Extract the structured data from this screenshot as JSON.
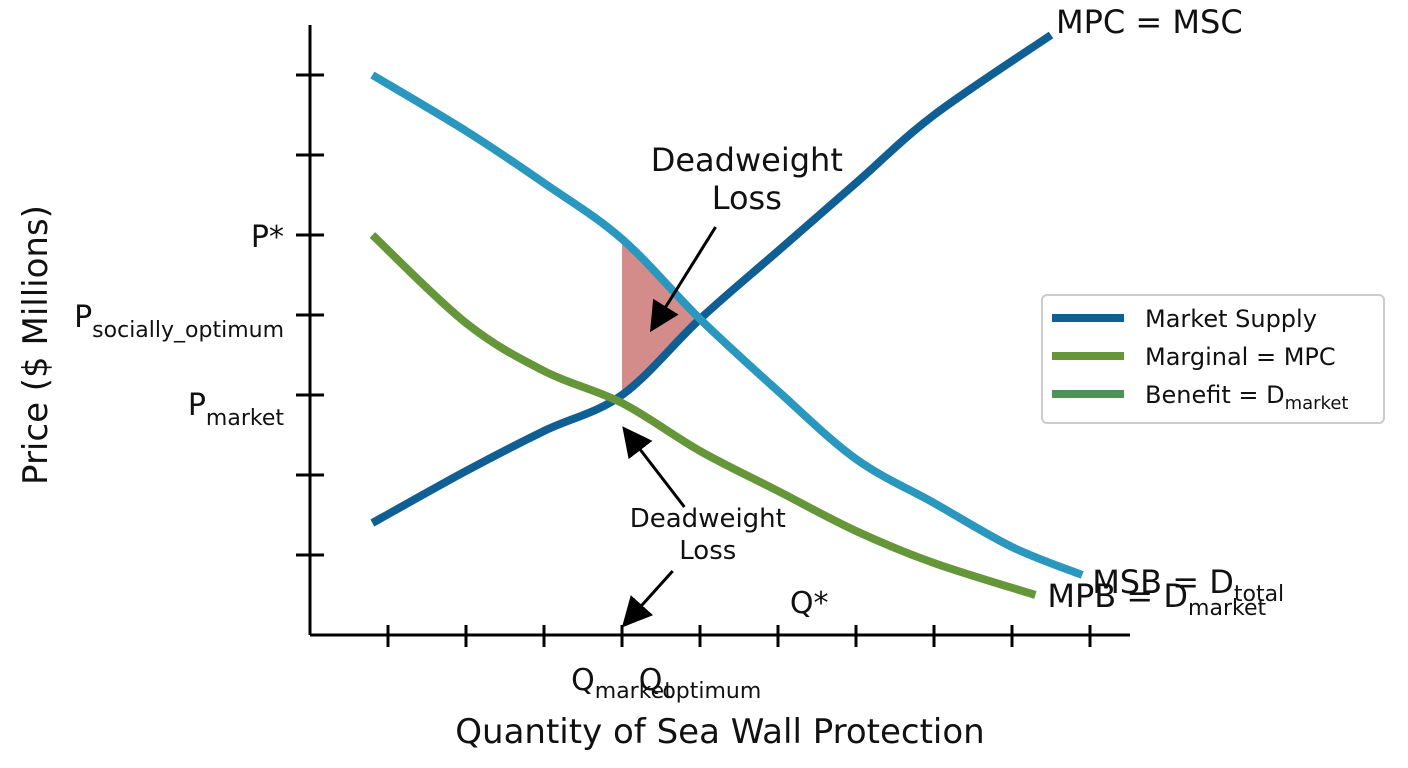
{
  "chart_data": {
    "type": "line",
    "title": "",
    "xlabel": "Quantity of Sea Wall Protection",
    "ylabel": "Price ($ Millions)",
    "xlim": [
      0,
      10.5
    ],
    "ylim": [
      0,
      7.5
    ],
    "x_ticks": [
      1,
      2,
      3,
      4,
      5,
      6,
      7,
      8,
      9,
      10
    ],
    "y_ticks": [
      1,
      2,
      3,
      4,
      5,
      6,
      7
    ],
    "grid": false,
    "legend_placement": "right",
    "price_labels": [
      {
        "base": "P*",
        "sub": "",
        "y": 5
      },
      {
        "base": "P",
        "sub": "socially_optimum",
        "y": 4
      },
      {
        "base": "P",
        "sub": "market",
        "y": 2.9
      }
    ],
    "quantity_labels": [
      {
        "base": "Q",
        "sub": "market",
        "x": 4
      },
      {
        "base": "Q",
        "sub": "optimum",
        "x": 5
      }
    ],
    "q_star_label": {
      "text": "Q*",
      "x": 6.4,
      "y": 0.4
    },
    "series": [
      {
        "name": "MPC = MSC",
        "label_base": "MPC = MSC",
        "label_sub": "",
        "color": "#0f5f94",
        "points": [
          [
            0.8,
            1.4
          ],
          [
            2.0,
            2.05
          ],
          [
            3.0,
            2.55
          ],
          [
            4.0,
            3.0
          ],
          [
            5.0,
            3.95
          ],
          [
            6.0,
            4.8
          ],
          [
            7.0,
            5.65
          ],
          [
            8.0,
            6.5
          ],
          [
            9.5,
            7.5
          ]
        ]
      },
      {
        "name": "MSB = Dtotal",
        "label_base": "MSB = D",
        "label_sub": "total",
        "color": "#2a97be",
        "points": [
          [
            0.8,
            7.0
          ],
          [
            2.0,
            6.3
          ],
          [
            3.0,
            5.65
          ],
          [
            4.0,
            4.95
          ],
          [
            5.0,
            3.95
          ],
          [
            6.0,
            3.05
          ],
          [
            7.0,
            2.2
          ],
          [
            8.0,
            1.65
          ],
          [
            9.0,
            1.1
          ],
          [
            9.9,
            0.75
          ]
        ]
      },
      {
        "name": "MPB = Dmarket",
        "label_base": "MPB = D",
        "label_sub": "market",
        "color": "#65973a",
        "points": [
          [
            0.8,
            5.0
          ],
          [
            2.0,
            3.9
          ],
          [
            3.0,
            3.3
          ],
          [
            4.0,
            2.9
          ],
          [
            5.0,
            2.3
          ],
          [
            6.0,
            1.8
          ],
          [
            7.0,
            1.3
          ],
          [
            8.0,
            0.9
          ],
          [
            9.3,
            0.5
          ]
        ]
      }
    ],
    "deadweight_loss_region": {
      "color": "#d48c8a",
      "points": [
        [
          4.0,
          4.95
        ],
        [
          5.0,
          3.95
        ],
        [
          4.0,
          2.95
        ]
      ]
    },
    "annotations": [
      {
        "lines": [
          "Deadweight",
          "Loss"
        ],
        "size": "large",
        "text_x": 5.6,
        "text_y": 5.8,
        "arrow_from": [
          5.2,
          5.1
        ],
        "arrow_to": [
          4.4,
          3.85
        ]
      },
      {
        "lines": [
          "Deadweight",
          "Loss"
        ],
        "size": "small",
        "text_x": 5.1,
        "text_y": 1.35,
        "arrow_from": [
          4.8,
          1.6
        ],
        "arrow_to": [
          4.05,
          2.55
        ]
      },
      {
        "lines": [],
        "size": "arrow",
        "arrow_from": [
          4.65,
          0.8
        ],
        "arrow_to": [
          4.05,
          0.15
        ]
      }
    ],
    "legend": [
      {
        "base": "Market Supply",
        "sub": "",
        "color": "#0f5f94"
      },
      {
        "base": "Marginal = MPC",
        "sub": "",
        "color": "#65973a"
      },
      {
        "base": "Benefit = D",
        "sub": "market",
        "color": "#4e9255"
      }
    ]
  }
}
